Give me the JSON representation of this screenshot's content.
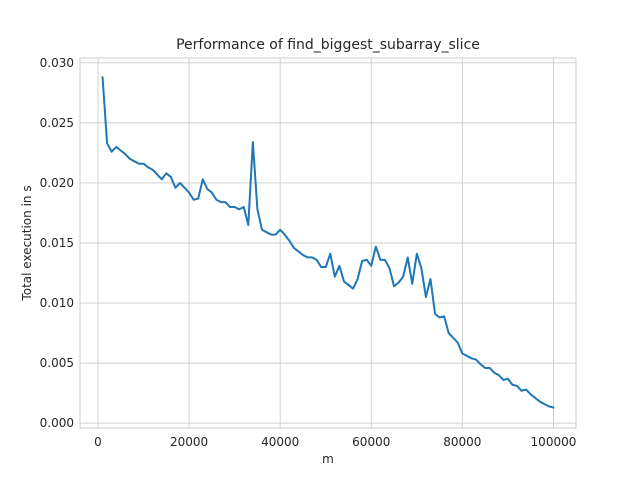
{
  "chart_data": {
    "type": "line",
    "title": "Performance of find_biggest_subarray_slice",
    "xlabel": "m",
    "ylabel": "Total execution in s",
    "xlim": [
      -3950,
      104950
    ],
    "ylim": [
      -0.0004,
      0.0304
    ],
    "grid": true,
    "legend": "none",
    "x_ticks": [
      0,
      20000,
      40000,
      60000,
      80000,
      100000
    ],
    "x_tick_labels": [
      "0",
      "20000",
      "40000",
      "60000",
      "80000",
      "100000"
    ],
    "y_ticks": [
      0.0,
      0.005,
      0.01,
      0.015,
      0.02,
      0.025,
      0.03
    ],
    "y_tick_labels": [
      "0.000",
      "0.005",
      "0.010",
      "0.015",
      "0.020",
      "0.025",
      "0.030"
    ],
    "series": [
      {
        "color": "#1f77b4",
        "points": [
          [
            1000,
            0.0288
          ],
          [
            2000,
            0.0233
          ],
          [
            3000,
            0.0226
          ],
          [
            4000,
            0.023
          ],
          [
            5000,
            0.0227
          ],
          [
            6000,
            0.0224
          ],
          [
            7000,
            0.022
          ],
          [
            8000,
            0.0218
          ],
          [
            9000,
            0.0216
          ],
          [
            10000,
            0.0216
          ],
          [
            11000,
            0.0213
          ],
          [
            12000,
            0.0211
          ],
          [
            13000,
            0.0207
          ],
          [
            14000,
            0.0203
          ],
          [
            15000,
            0.0208
          ],
          [
            16000,
            0.0205
          ],
          [
            17000,
            0.0196
          ],
          [
            18000,
            0.02
          ],
          [
            19000,
            0.0196
          ],
          [
            20000,
            0.0192
          ],
          [
            21000,
            0.0186
          ],
          [
            22000,
            0.0187
          ],
          [
            23000,
            0.0203
          ],
          [
            24000,
            0.0195
          ],
          [
            25000,
            0.0192
          ],
          [
            26000,
            0.0186
          ],
          [
            27000,
            0.0184
          ],
          [
            28000,
            0.0184
          ],
          [
            29000,
            0.018
          ],
          [
            30000,
            0.018
          ],
          [
            31000,
            0.0178
          ],
          [
            32000,
            0.018
          ],
          [
            33000,
            0.0165
          ],
          [
            34000,
            0.0234
          ],
          [
            35000,
            0.0178
          ],
          [
            36000,
            0.0161
          ],
          [
            37000,
            0.0159
          ],
          [
            38000,
            0.0157
          ],
          [
            39000,
            0.0157
          ],
          [
            40000,
            0.0161
          ],
          [
            41000,
            0.0157
          ],
          [
            42000,
            0.0152
          ],
          [
            43000,
            0.0146
          ],
          [
            44000,
            0.0143
          ],
          [
            45000,
            0.014
          ],
          [
            46000,
            0.0138
          ],
          [
            47000,
            0.0138
          ],
          [
            48000,
            0.0136
          ],
          [
            49000,
            0.013
          ],
          [
            50000,
            0.013
          ],
          [
            51000,
            0.0141
          ],
          [
            52000,
            0.0122
          ],
          [
            53000,
            0.0131
          ],
          [
            54000,
            0.0118
          ],
          [
            55000,
            0.0115
          ],
          [
            56000,
            0.0112
          ],
          [
            57000,
            0.012
          ],
          [
            58000,
            0.0135
          ],
          [
            59000,
            0.0136
          ],
          [
            60000,
            0.0131
          ],
          [
            61000,
            0.0147
          ],
          [
            62000,
            0.0136
          ],
          [
            63000,
            0.0136
          ],
          [
            64000,
            0.0129
          ],
          [
            65000,
            0.0114
          ],
          [
            66000,
            0.0117
          ],
          [
            67000,
            0.0122
          ],
          [
            68000,
            0.0138
          ],
          [
            69000,
            0.0116
          ],
          [
            70000,
            0.0141
          ],
          [
            71000,
            0.0129
          ],
          [
            72000,
            0.0105
          ],
          [
            73000,
            0.012
          ],
          [
            74000,
            0.0091
          ],
          [
            75000,
            0.0088
          ],
          [
            76000,
            0.0089
          ],
          [
            77000,
            0.0075
          ],
          [
            78000,
            0.0071
          ],
          [
            79000,
            0.0067
          ],
          [
            80000,
            0.0058
          ],
          [
            81000,
            0.0056
          ],
          [
            82000,
            0.0054
          ],
          [
            83000,
            0.0053
          ],
          [
            84000,
            0.0049
          ],
          [
            85000,
            0.0046
          ],
          [
            86000,
            0.0046
          ],
          [
            87000,
            0.0042
          ],
          [
            88000,
            0.004
          ],
          [
            89000,
            0.0036
          ],
          [
            90000,
            0.0037
          ],
          [
            91000,
            0.0032
          ],
          [
            92000,
            0.0031
          ],
          [
            93000,
            0.0027
          ],
          [
            94000,
            0.0028
          ],
          [
            95000,
            0.0024
          ],
          [
            96000,
            0.0021
          ],
          [
            97000,
            0.0018
          ],
          [
            98000,
            0.0016
          ],
          [
            99000,
            0.0014
          ],
          [
            100000,
            0.0013
          ]
        ]
      }
    ]
  }
}
